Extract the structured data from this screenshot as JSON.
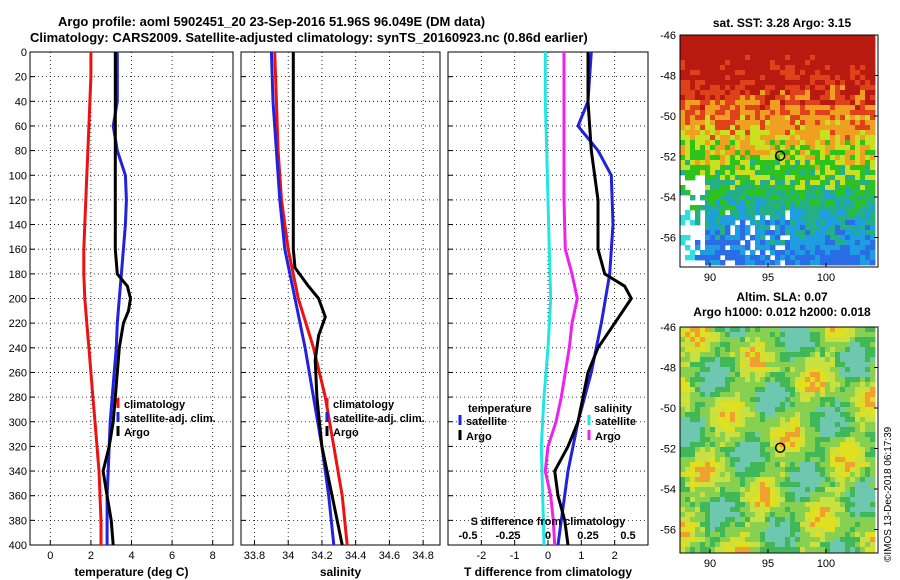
{
  "header": {
    "title_line1": "Argo profile: aoml 5902451_20 23-Sep-2016 51.96S 96.049E (DM data)",
    "title_line2": "Climatology: CARS2009. Satellite-adjusted climatology: synTS_20160923.nc (0.86d earlier)"
  },
  "maps": {
    "sst_title": "sat. SST: 3.28 Argo: 3.15",
    "sla_title1": "Altim. SLA: 0.07",
    "sla_title2": "Argo h1000: 0.012 h2000: 0.018",
    "lat_ticks": [
      "-46",
      "-48",
      "-50",
      "-52",
      "-54",
      "-56"
    ],
    "lon_ticks": [
      "90",
      "95",
      "100"
    ],
    "float_marker": {
      "lon": 96.05,
      "lat": -51.96
    }
  },
  "stamp": "©IMOS 13-Dec-2018 06:17:39",
  "colors": {
    "climatology": "#ee1111",
    "satellite": "#2222dd",
    "argo": "#000000",
    "sal_sat": "#22e6e6",
    "sal_clim": "#ee22ee"
  },
  "chart_data": [
    {
      "type": "line",
      "title": "",
      "xlabel": "temperature (deg C)",
      "ylabel": "",
      "xlim": [
        -1,
        9
      ],
      "ylim": [
        400,
        0
      ],
      "xticks": [
        "0",
        "2",
        "4",
        "6",
        "8"
      ],
      "yticks": [
        "0",
        "20",
        "40",
        "60",
        "80",
        "100",
        "120",
        "140",
        "160",
        "180",
        "200",
        "220",
        "240",
        "260",
        "280",
        "300",
        "320",
        "340",
        "360",
        "380",
        "400"
      ],
      "legend": [
        "climatology",
        "satellite-adj. clim.",
        "Argo"
      ],
      "series": [
        {
          "name": "climatology",
          "y": [
            0,
            20,
            40,
            60,
            80,
            100,
            120,
            140,
            160,
            180,
            200,
            220,
            240,
            260,
            280,
            300,
            320,
            340,
            360,
            380,
            400
          ],
          "values": [
            2.0,
            2.0,
            1.95,
            1.9,
            1.85,
            1.8,
            1.75,
            1.7,
            1.65,
            1.65,
            1.7,
            1.8,
            1.9,
            2.0,
            2.1,
            2.2,
            2.3,
            2.4,
            2.45,
            2.5,
            2.5
          ]
        },
        {
          "name": "satellite-adj. clim.",
          "y": [
            0,
            20,
            40,
            60,
            80,
            100,
            120,
            140,
            160,
            180,
            200,
            220,
            240,
            260,
            280,
            300,
            320,
            340,
            360,
            380,
            400
          ],
          "values": [
            3.3,
            3.3,
            3.3,
            3.1,
            3.3,
            3.7,
            3.75,
            3.7,
            3.6,
            3.5,
            3.4,
            3.3,
            3.25,
            3.15,
            3.05,
            2.95,
            2.9,
            2.85,
            2.8,
            2.8,
            2.8
          ]
        },
        {
          "name": "Argo",
          "y": [
            0,
            20,
            40,
            60,
            80,
            100,
            120,
            140,
            160,
            180,
            190,
            200,
            210,
            220,
            240,
            260,
            280,
            300,
            320,
            340,
            360,
            380,
            400
          ],
          "values": [
            3.2,
            3.2,
            3.2,
            3.2,
            3.2,
            3.2,
            3.2,
            3.2,
            3.2,
            3.3,
            3.8,
            3.95,
            3.85,
            3.6,
            3.4,
            3.3,
            3.2,
            3.1,
            2.9,
            2.6,
            2.8,
            3.0,
            3.1
          ]
        }
      ]
    },
    {
      "type": "line",
      "title": "",
      "xlabel": "salinity",
      "ylabel": "",
      "xlim": [
        33.72,
        34.9
      ],
      "ylim": [
        400,
        0
      ],
      "xticks": [
        "33.8",
        "34",
        "34.2",
        "34.4",
        "34.6",
        "34.8"
      ],
      "legend": [
        "climatology",
        "satellite-adj. clim.",
        "Argo"
      ],
      "series": [
        {
          "name": "climatology",
          "y": [
            0,
            40,
            80,
            120,
            160,
            200,
            240,
            280,
            320,
            360,
            400
          ],
          "values": [
            33.92,
            33.93,
            33.94,
            33.96,
            34.0,
            34.06,
            34.15,
            34.22,
            34.27,
            34.32,
            34.35
          ]
        },
        {
          "name": "satellite-adj. clim.",
          "y": [
            0,
            40,
            80,
            120,
            160,
            200,
            240,
            280,
            320,
            360,
            400
          ],
          "values": [
            33.9,
            33.91,
            33.93,
            33.95,
            33.98,
            34.04,
            34.1,
            34.15,
            34.2,
            34.24,
            34.27
          ]
        },
        {
          "name": "Argo",
          "y": [
            0,
            40,
            80,
            120,
            160,
            175,
            190,
            200,
            215,
            230,
            250,
            280,
            320,
            360,
            400
          ],
          "values": [
            34.03,
            34.03,
            34.03,
            34.03,
            34.03,
            34.04,
            34.12,
            34.18,
            34.22,
            34.18,
            34.16,
            34.17,
            34.2,
            34.26,
            34.32
          ]
        }
      ]
    },
    {
      "type": "line",
      "title": "",
      "xlabel": "T difference from climatology",
      "xlabel_top": "S difference from climatology",
      "ylabel": "",
      "xlim": [
        -3,
        3
      ],
      "ylim": [
        400,
        0
      ],
      "xticks": [
        "-2",
        "-1",
        "0",
        "1",
        "2"
      ],
      "xticks_s": [
        "-0.5",
        "-0.25",
        "0",
        "0.25",
        "0.5"
      ],
      "legend_t_title": "temperature",
      "legend_s_title": "salinity",
      "legend": [
        "satellite",
        "Argo",
        "satellite",
        "Argo"
      ],
      "series": [
        {
          "name": "T satellite",
          "y": [
            0,
            40,
            60,
            80,
            100,
            140,
            180,
            220,
            260,
            300,
            340,
            380,
            400
          ],
          "values": [
            1.3,
            1.2,
            0.9,
            1.5,
            1.9,
            1.95,
            1.85,
            1.6,
            1.3,
            0.9,
            0.6,
            0.4,
            0.3
          ]
        },
        {
          "name": "T Argo",
          "y": [
            0,
            40,
            80,
            120,
            140,
            160,
            180,
            190,
            200,
            220,
            240,
            260,
            300,
            320,
            340,
            360,
            380,
            400
          ],
          "values": [
            1.2,
            1.2,
            1.3,
            1.5,
            1.5,
            1.5,
            1.7,
            2.3,
            2.5,
            2.0,
            1.5,
            1.2,
            0.9,
            0.6,
            0.2,
            0.3,
            0.5,
            0.6
          ]
        },
        {
          "name": "S satellite",
          "y": [
            0,
            40,
            80,
            120,
            160,
            200,
            240,
            280,
            320,
            360,
            400
          ],
          "values": [
            -0.02,
            -0.02,
            -0.01,
            0.0,
            0.01,
            0.02,
            0.0,
            -0.03,
            -0.05,
            -0.04,
            -0.03
          ]
        },
        {
          "name": "S Argo",
          "y": [
            0,
            40,
            80,
            120,
            160,
            180,
            200,
            220,
            240,
            260,
            280,
            300,
            320,
            340,
            360,
            380,
            400
          ],
          "values": [
            0.12,
            0.12,
            0.12,
            0.12,
            0.13,
            0.18,
            0.22,
            0.18,
            0.16,
            0.13,
            0.1,
            0.06,
            0.0,
            -0.02,
            0.02,
            0.04,
            0.05
          ]
        }
      ]
    }
  ]
}
